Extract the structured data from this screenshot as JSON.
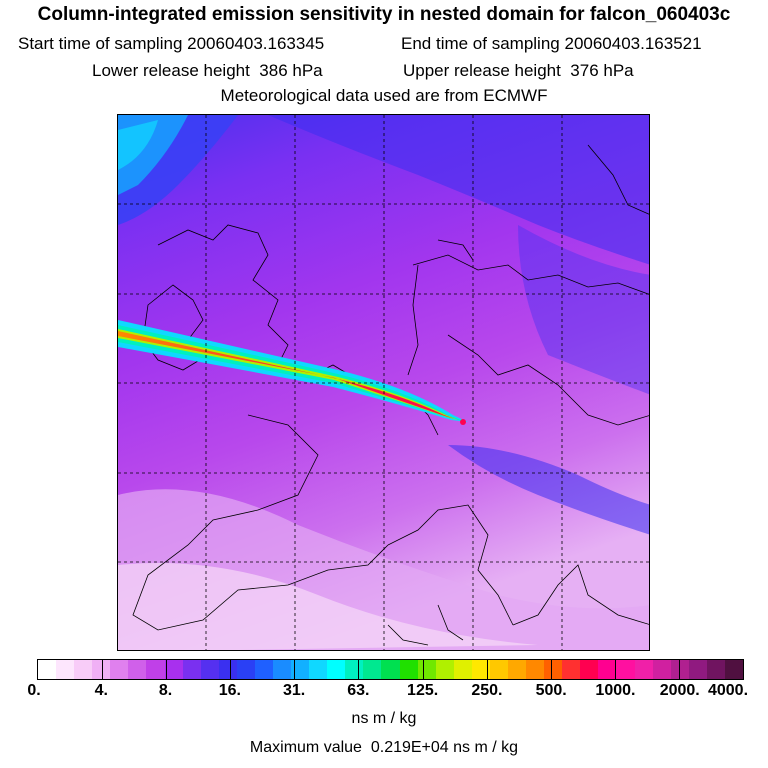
{
  "header": {
    "title": "Column-integrated emission sensitivity in nested domain for falcon_060403c",
    "start_label": "Start time of sampling",
    "start_value": "20060403.163345",
    "end_label": "End time of sampling",
    "end_value": "20060403.163521",
    "lower_label": "Lower release height",
    "lower_value": "386 hPa",
    "upper_label": "Upper release height",
    "upper_value": "376 hPa",
    "met_line": "Meteorological data used are from ECMWF"
  },
  "colorbar": {
    "ticks": [
      "0.",
      "4.",
      "8.",
      "16.",
      "31.",
      "63.",
      "125.",
      "250.",
      "500.",
      "1000.",
      "2000.",
      "4000."
    ],
    "colors": [
      "#ffffff",
      "#fde6fd",
      "#f8ccf8",
      "#f0b0f5",
      "#e080ee",
      "#d060ea",
      "#c040e8",
      "#a830ee",
      "#7a30f0",
      "#5530f0",
      "#3a30f0",
      "#2a40f5",
      "#1f60ff",
      "#1a8cff",
      "#12b0ff",
      "#10d8ff",
      "#00ffff",
      "#00f0c0",
      "#00e890",
      "#00e050",
      "#20e000",
      "#70e800",
      "#b0f000",
      "#e0f000",
      "#ffe800",
      "#ffc800",
      "#ffa800",
      "#ff8800",
      "#ff6000",
      "#ff3030",
      "#ff0050",
      "#ff0090",
      "#ff10a0",
      "#f020a8",
      "#d020a0",
      "#b02090",
      "#901a80",
      "#701460",
      "#501040"
    ],
    "units": "ns m / kg"
  },
  "footer": {
    "max_label": "Maximum value",
    "max_value": "0.219E+04",
    "max_units": "ns m / kg"
  }
}
